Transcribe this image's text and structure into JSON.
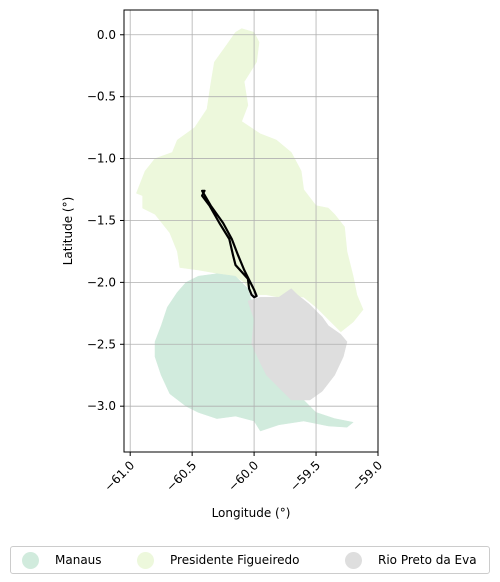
{
  "chart_data": {
    "type": "map",
    "xlabel": "Longitude (°)",
    "ylabel": "Latitude (°)",
    "xlim": [
      -61.05,
      -59.0
    ],
    "ylim": [
      -3.37,
      0.2
    ],
    "grid": true,
    "x_ticks": [
      -61.0,
      -60.5,
      -60.0,
      -59.5,
      -59.0
    ],
    "x_tick_labels": [
      "−61.0",
      "−60.5",
      "−60.0",
      "−59.5",
      "−59.0"
    ],
    "y_ticks": [
      0.0,
      -0.5,
      -1.0,
      -1.5,
      -2.0,
      -2.5,
      -3.0
    ],
    "y_tick_labels": [
      "0.0",
      "−0.5",
      "−1.0",
      "−1.5",
      "−2.0",
      "−2.5",
      "−3.0"
    ],
    "legend_position": "bottom",
    "regions": [
      {
        "name": "Presidente Figueiredo",
        "color": "#edf8dc",
        "outline": [
          [
            -60.1,
            0.05
          ],
          [
            -60.0,
            0.02
          ],
          [
            -59.96,
            -0.06
          ],
          [
            -59.98,
            -0.22
          ],
          [
            -60.08,
            -0.38
          ],
          [
            -60.05,
            -0.57
          ],
          [
            -60.1,
            -0.7
          ],
          [
            -59.95,
            -0.8
          ],
          [
            -59.82,
            -0.85
          ],
          [
            -59.7,
            -0.95
          ],
          [
            -59.62,
            -1.1
          ],
          [
            -59.6,
            -1.25
          ],
          [
            -59.5,
            -1.38
          ],
          [
            -59.4,
            -1.4
          ],
          [
            -59.35,
            -1.45
          ],
          [
            -59.27,
            -1.55
          ],
          [
            -59.25,
            -1.75
          ],
          [
            -59.2,
            -1.95
          ],
          [
            -59.17,
            -2.1
          ],
          [
            -59.12,
            -2.22
          ],
          [
            -59.2,
            -2.32
          ],
          [
            -59.3,
            -2.4
          ],
          [
            -59.4,
            -2.3
          ],
          [
            -59.5,
            -2.2
          ],
          [
            -59.6,
            -2.12
          ],
          [
            -59.72,
            -2.1
          ],
          [
            -59.8,
            -2.12
          ],
          [
            -59.9,
            -2.1
          ],
          [
            -60.0,
            -2.1
          ],
          [
            -60.08,
            -2.0
          ],
          [
            -60.15,
            -1.95
          ],
          [
            -60.28,
            -1.93
          ],
          [
            -60.45,
            -1.9
          ],
          [
            -60.6,
            -1.88
          ],
          [
            -60.62,
            -1.75
          ],
          [
            -60.68,
            -1.6
          ],
          [
            -60.8,
            -1.45
          ],
          [
            -60.9,
            -1.4
          ],
          [
            -60.9,
            -1.3
          ],
          [
            -60.95,
            -1.28
          ],
          [
            -60.88,
            -1.1
          ],
          [
            -60.8,
            -1.0
          ],
          [
            -60.66,
            -0.95
          ],
          [
            -60.62,
            -0.85
          ],
          [
            -60.48,
            -0.75
          ],
          [
            -60.38,
            -0.6
          ],
          [
            -60.35,
            -0.4
          ],
          [
            -60.32,
            -0.22
          ],
          [
            -60.22,
            -0.08
          ],
          [
            -60.15,
            0.02
          ]
        ]
      },
      {
        "name": "Manaus",
        "color": "#d1ebdd",
        "outline": [
          [
            -60.45,
            -1.95
          ],
          [
            -60.3,
            -1.93
          ],
          [
            -60.15,
            -1.95
          ],
          [
            -60.05,
            -2.05
          ],
          [
            -60.02,
            -2.15
          ],
          [
            -60.0,
            -2.3
          ],
          [
            -60.02,
            -2.5
          ],
          [
            -59.95,
            -2.65
          ],
          [
            -59.8,
            -2.78
          ],
          [
            -59.65,
            -2.9
          ],
          [
            -59.5,
            -3.05
          ],
          [
            -59.35,
            -3.1
          ],
          [
            -59.2,
            -3.13
          ],
          [
            -59.25,
            -3.17
          ],
          [
            -59.4,
            -3.16
          ],
          [
            -59.6,
            -3.12
          ],
          [
            -59.8,
            -3.15
          ],
          [
            -59.95,
            -3.2
          ],
          [
            -60.0,
            -3.12
          ],
          [
            -60.15,
            -3.08
          ],
          [
            -60.3,
            -3.1
          ],
          [
            -60.45,
            -3.05
          ],
          [
            -60.55,
            -3.0
          ],
          [
            -60.68,
            -2.9
          ],
          [
            -60.75,
            -2.75
          ],
          [
            -60.8,
            -2.6
          ],
          [
            -60.8,
            -2.48
          ],
          [
            -60.75,
            -2.35
          ],
          [
            -60.7,
            -2.2
          ],
          [
            -60.62,
            -2.08
          ],
          [
            -60.55,
            -2.0
          ]
        ]
      },
      {
        "name": "Rio Preto da Eva",
        "color": "#dedede",
        "outline": [
          [
            -60.05,
            -2.15
          ],
          [
            -59.95,
            -2.12
          ],
          [
            -59.8,
            -2.12
          ],
          [
            -59.7,
            -2.05
          ],
          [
            -59.65,
            -2.1
          ],
          [
            -59.55,
            -2.18
          ],
          [
            -59.45,
            -2.28
          ],
          [
            -59.4,
            -2.35
          ],
          [
            -59.3,
            -2.42
          ],
          [
            -59.25,
            -2.48
          ],
          [
            -59.28,
            -2.6
          ],
          [
            -59.35,
            -2.75
          ],
          [
            -59.45,
            -2.88
          ],
          [
            -59.55,
            -2.95
          ],
          [
            -59.7,
            -2.95
          ],
          [
            -59.8,
            -2.85
          ],
          [
            -59.9,
            -2.75
          ],
          [
            -59.95,
            -2.65
          ],
          [
            -60.02,
            -2.5
          ],
          [
            -60.0,
            -2.3
          ]
        ]
      }
    ],
    "highlight_outline": [
      [
        -60.42,
        -1.26
      ],
      [
        -60.35,
        -1.38
      ],
      [
        -60.25,
        -1.52
      ],
      [
        -60.18,
        -1.65
      ],
      [
        -60.13,
        -1.78
      ],
      [
        -60.08,
        -1.9
      ],
      [
        -60.04,
        -1.98
      ],
      [
        -60.0,
        -2.06
      ],
      [
        -59.98,
        -2.11
      ],
      [
        -60.0,
        -2.12
      ],
      [
        -60.02,
        -2.1
      ],
      [
        -60.04,
        -2.05
      ],
      [
        -60.05,
        -1.97
      ],
      [
        -60.15,
        -1.86
      ],
      [
        -60.17,
        -1.78
      ],
      [
        -60.2,
        -1.65
      ],
      [
        -60.28,
        -1.52
      ],
      [
        -60.36,
        -1.38
      ],
      [
        -60.42,
        -1.3
      ],
      [
        -60.4,
        -1.26
      ]
    ]
  },
  "legend": {
    "items": [
      {
        "label": "Manaus",
        "color": "#d1ebdd"
      },
      {
        "label": "Presidente Figueiredo",
        "color": "#edf8dc"
      },
      {
        "label": "Rio Preto da Eva",
        "color": "#dedede"
      }
    ]
  }
}
